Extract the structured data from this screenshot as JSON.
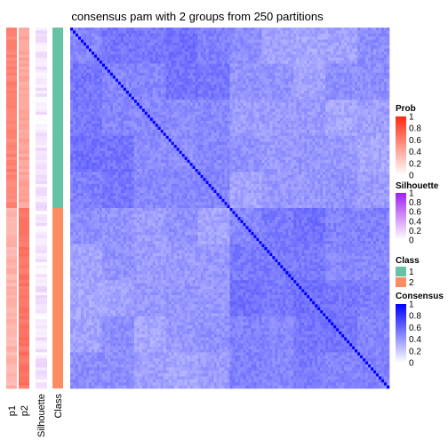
{
  "chart_data": {
    "type": "heatmap",
    "title": "consensus pam with 2 groups from 250 partitions",
    "n_samples": 120,
    "class_split": 0.5,
    "annotation_labels": [
      "p1",
      "p2",
      "Silhouette",
      "Class"
    ],
    "legends": [
      {
        "title": "Prob",
        "ticks": [
          "1",
          "0.8",
          "0.6",
          "0.4",
          "0.2",
          "0"
        ],
        "colors": [
          "#ff2a12",
          "#ffffff"
        ]
      },
      {
        "title": "Silhouette",
        "ticks": [
          "1",
          "0.8",
          "0.6",
          "0.4",
          "0.2",
          "0"
        ],
        "colors": [
          "#a020f0",
          "#ffffff"
        ]
      },
      {
        "title": "Class",
        "items": [
          {
            "label": "1",
            "color": "#66c2a5"
          },
          {
            "label": "2",
            "color": "#fc8d62"
          }
        ]
      },
      {
        "title": "Consensus",
        "ticks": [
          "1",
          "0.8",
          "0.6",
          "0.4",
          "0.2",
          "0"
        ],
        "colors": [
          "#0000ff",
          "#ffffff"
        ]
      }
    ],
    "consensus_range": [
      0,
      1
    ],
    "diagonal_value": 1,
    "within_group_mean": 0.5,
    "between_group_mean": 0.4
  }
}
